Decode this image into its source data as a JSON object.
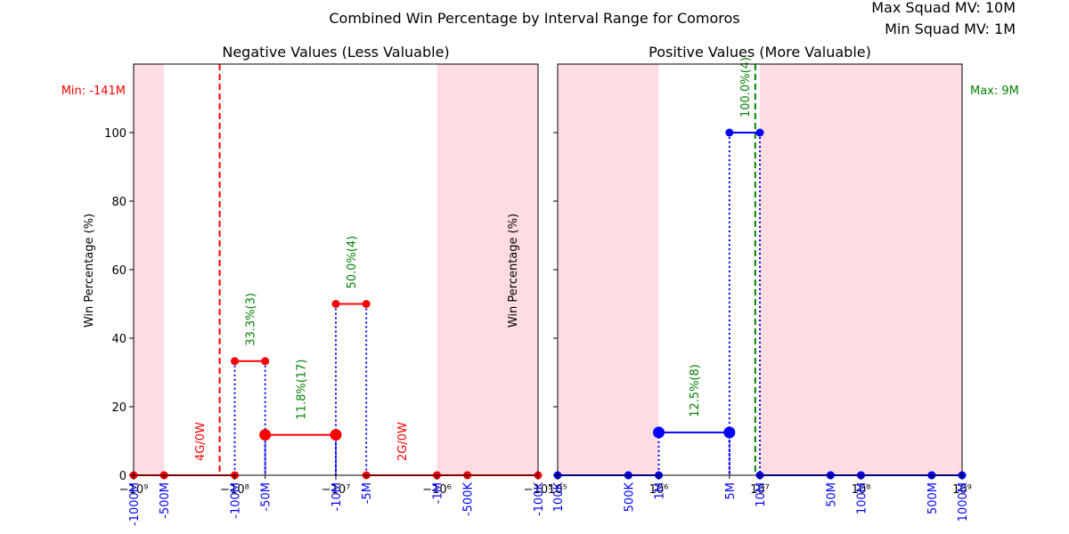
{
  "figure": {
    "title": "Combined Win Percentage by Interval Range for Comoros",
    "max_squad_label": "Max Squad MV: 10M",
    "min_squad_label": "Min Squad MV: 1M"
  },
  "colors": {
    "negative_line": "#ff0000",
    "positive_line": "#0000ff",
    "drop_line": "#0000ff",
    "shade": "#ffc0cb",
    "win_label": "#008000",
    "loss_label": "#ff0000",
    "min_line": "#ff0000",
    "max_line": "#008000",
    "neg_tick_label": "#0000ff",
    "pos_tick_label": "#0000ff"
  },
  "chart_data": [
    {
      "type": "line",
      "panel": "negative",
      "title": "Negative Values (Less Valuable)",
      "ylabel": "Win Percentage (%)",
      "xlabel": "",
      "xscale": "symlog-negative",
      "xlim": [
        -1000000000,
        -100000
      ],
      "ylim": [
        0,
        100
      ],
      "grid": false,
      "y_ticks": [
        "0",
        "20",
        "40",
        "60",
        "80",
        "100"
      ],
      "x_ticks": [
        {
          "label": "−10⁹",
          "value": -1000000000
        },
        {
          "label": "−10⁸",
          "value": -100000000
        },
        {
          "label": "−10⁷",
          "value": -10000000
        },
        {
          "label": "−10⁶",
          "value": -1000000
        },
        {
          "label": "−10⁵",
          "value": -100000
        }
      ],
      "range_labels": [
        {
          "label": "-1000M",
          "value": -1000000000
        },
        {
          "label": "-500M",
          "value": -500000000
        },
        {
          "label": "-100M",
          "value": -100000000
        },
        {
          "label": "-50M",
          "value": -50000000
        },
        {
          "label": "-10M",
          "value": -10000000
        },
        {
          "label": "-5M",
          "value": -5000000
        },
        {
          "label": "-1M",
          "value": -1000000
        },
        {
          "label": "-500K",
          "value": -500000
        },
        {
          "label": "-100K",
          "value": -100000
        }
      ],
      "shaded_ranges": [
        [
          -1000000000,
          -500000000
        ],
        [
          -1000000,
          -500000
        ],
        [
          -500000,
          -100000
        ]
      ],
      "segments": [
        {
          "x_start": -1000000000,
          "x_end": -500000000,
          "win_pct": 0,
          "games": 0
        },
        {
          "x_start": -500000000,
          "x_end": -100000000,
          "win_pct": 0,
          "games": 4,
          "label": "4G/0W",
          "label_color": "loss"
        },
        {
          "x_start": -100000000,
          "x_end": -50000000,
          "win_pct": 33.3,
          "games": 3,
          "label": "33.3%(3)",
          "label_color": "win"
        },
        {
          "x_start": -50000000,
          "x_end": -10000000,
          "win_pct": 11.8,
          "games": 17,
          "label": "11.8%(17)",
          "label_color": "win",
          "big": true
        },
        {
          "x_start": -10000000,
          "x_end": -5000000,
          "win_pct": 50.0,
          "games": 4,
          "label": "50.0%(4)",
          "label_color": "win"
        },
        {
          "x_start": -5000000,
          "x_end": -1000000,
          "win_pct": 0,
          "games": 2,
          "label": "2G/0W",
          "label_color": "loss"
        },
        {
          "x_start": -1000000,
          "x_end": -500000,
          "win_pct": 0,
          "games": 0
        },
        {
          "x_start": -500000,
          "x_end": -100000,
          "win_pct": 0,
          "games": 0
        }
      ],
      "reference_line": {
        "value": -141000000,
        "label": "Min: -141M"
      }
    },
    {
      "type": "line",
      "panel": "positive",
      "title": "Positive Values (More Valuable)",
      "ylabel": "Win Percentage (%)",
      "xlabel": "",
      "xscale": "log",
      "xlim": [
        100000,
        1000000000
      ],
      "ylim": [
        0,
        100
      ],
      "grid": false,
      "y_ticks": [],
      "x_ticks": [
        {
          "label": "10⁵",
          "value": 100000
        },
        {
          "label": "10⁶",
          "value": 1000000
        },
        {
          "label": "10⁷",
          "value": 10000000
        },
        {
          "label": "10⁸",
          "value": 100000000
        },
        {
          "label": "10⁹",
          "value": 1000000000
        }
      ],
      "range_labels": [
        {
          "label": "100K",
          "value": 100000
        },
        {
          "label": "500K",
          "value": 500000
        },
        {
          "label": "1M",
          "value": 1000000
        },
        {
          "label": "5M",
          "value": 5000000
        },
        {
          "label": "10M",
          "value": 10000000
        },
        {
          "label": "50M",
          "value": 50000000
        },
        {
          "label": "100M",
          "value": 100000000
        },
        {
          "label": "500M",
          "value": 500000000
        },
        {
          "label": "1000M",
          "value": 1000000000
        }
      ],
      "shaded_ranges": [
        [
          100000,
          500000
        ],
        [
          500000,
          1000000
        ],
        [
          10000000,
          50000000
        ],
        [
          50000000,
          100000000
        ],
        [
          100000000,
          500000000
        ],
        [
          500000000,
          1000000000
        ]
      ],
      "segments": [
        {
          "x_start": 100000,
          "x_end": 500000,
          "win_pct": 0,
          "games": 0
        },
        {
          "x_start": 500000,
          "x_end": 1000000,
          "win_pct": 0,
          "games": 0
        },
        {
          "x_start": 1000000,
          "x_end": 5000000,
          "win_pct": 12.5,
          "games": 8,
          "label": "12.5%(8)",
          "label_color": "win",
          "big": true
        },
        {
          "x_start": 5000000,
          "x_end": 10000000,
          "win_pct": 100.0,
          "games": 4,
          "label": "100.0%(4)",
          "label_color": "win"
        },
        {
          "x_start": 10000000,
          "x_end": 50000000,
          "win_pct": 0,
          "games": 0
        },
        {
          "x_start": 50000000,
          "x_end": 100000000,
          "win_pct": 0,
          "games": 0
        },
        {
          "x_start": 100000000,
          "x_end": 500000000,
          "win_pct": 0,
          "games": 0
        },
        {
          "x_start": 500000000,
          "x_end": 1000000000,
          "win_pct": 0,
          "games": 0
        }
      ],
      "reference_line": {
        "value": 9000000,
        "label": "Max: 9M"
      }
    }
  ]
}
